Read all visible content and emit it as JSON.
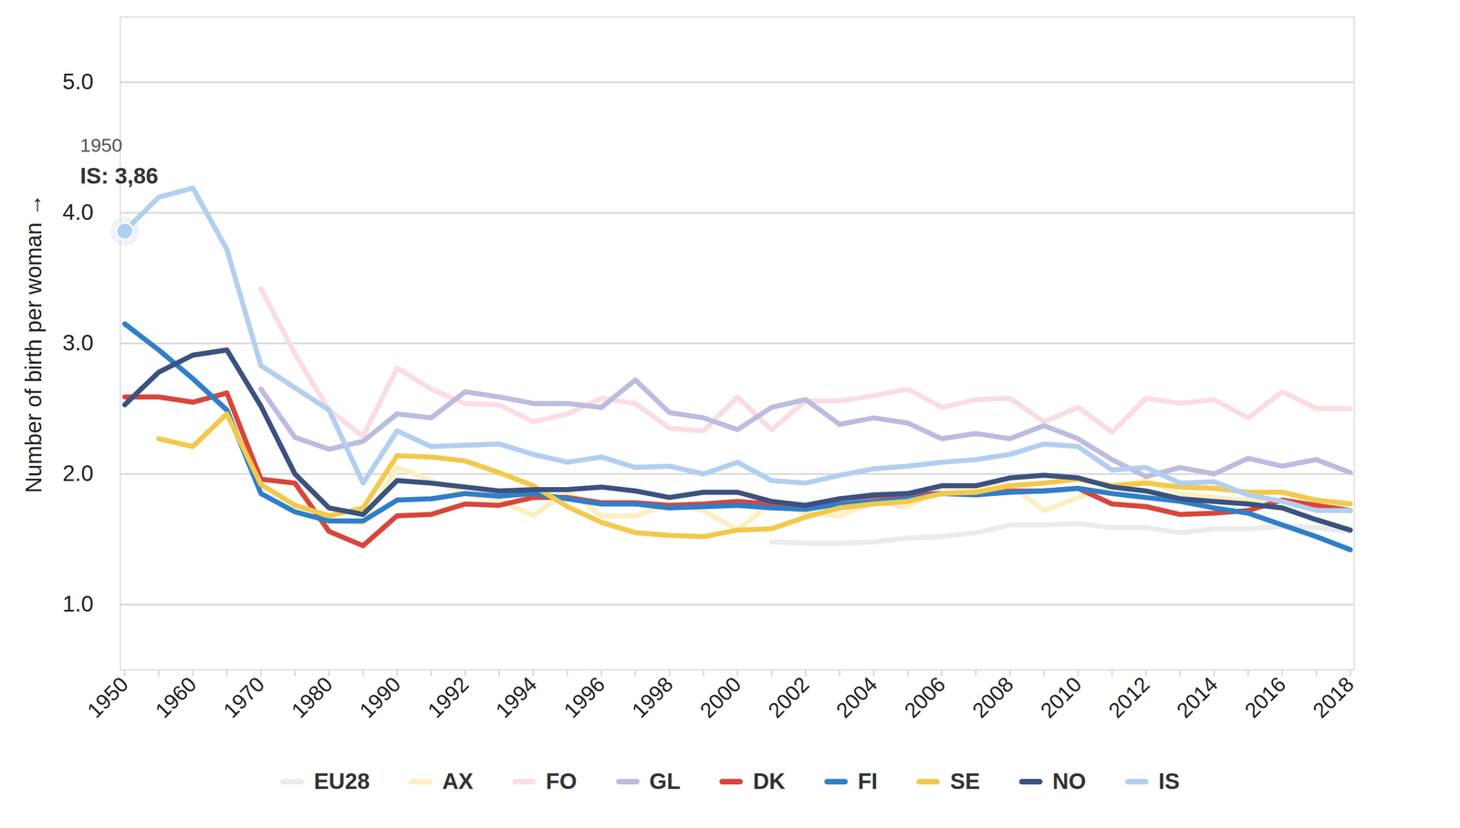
{
  "chart_data": {
    "type": "line",
    "y_label": "Number of birth per woman",
    "categories": [
      "1950",
      null,
      "1960",
      null,
      "1970",
      null,
      "1980",
      null,
      "1990",
      null,
      "1992",
      null,
      "1994",
      null,
      "1996",
      null,
      "1998",
      null,
      "2000",
      null,
      "2002",
      null,
      "2004",
      null,
      "2006",
      null,
      "2008",
      null,
      "2010",
      null,
      "2012",
      null,
      "2014",
      null,
      "2016",
      null,
      "2018"
    ],
    "ylim": [
      0.5,
      5.5
    ],
    "yticks": [
      1,
      2,
      3,
      4,
      5
    ],
    "grid": true,
    "legend": "bottom",
    "series": [
      {
        "name": "EU28",
        "color": "#ebebeb",
        "values": [
          null,
          null,
          null,
          null,
          null,
          null,
          null,
          null,
          null,
          null,
          null,
          null,
          null,
          null,
          null,
          null,
          null,
          null,
          null,
          1.48,
          1.47,
          1.47,
          1.48,
          1.51,
          1.52,
          1.55,
          1.61,
          1.61,
          1.62,
          1.59,
          1.59,
          1.55,
          1.58,
          1.58,
          1.6,
          1.59,
          1.56
        ]
      },
      {
        "name": "AX",
        "color": "#fcefc2",
        "values": [
          null,
          null,
          null,
          null,
          null,
          null,
          1.65,
          1.62,
          2.05,
          1.95,
          1.85,
          1.8,
          1.68,
          1.87,
          1.68,
          1.68,
          1.77,
          1.72,
          1.57,
          1.78,
          1.7,
          1.68,
          1.78,
          1.75,
          1.9,
          1.88,
          1.92,
          1.72,
          1.82,
          1.9,
          1.95,
          1.85,
          1.82,
          1.8,
          1.8,
          1.72,
          1.78
        ]
      },
      {
        "name": "FO",
        "color": "#fadde1",
        "values": [
          null,
          null,
          null,
          null,
          3.42,
          2.92,
          2.49,
          2.29,
          2.81,
          2.65,
          2.54,
          2.53,
          2.4,
          2.46,
          2.58,
          2.54,
          2.35,
          2.33,
          2.59,
          2.34,
          2.56,
          2.56,
          2.6,
          2.65,
          2.51,
          2.57,
          2.58,
          2.4,
          2.51,
          2.32,
          2.58,
          2.54,
          2.57,
          2.43,
          2.63,
          2.5,
          2.5
        ]
      },
      {
        "name": "GL",
        "color": "#bcbce0",
        "values": [
          null,
          null,
          null,
          null,
          2.65,
          2.28,
          2.19,
          2.25,
          2.46,
          2.43,
          2.63,
          2.59,
          2.54,
          2.54,
          2.51,
          2.72,
          2.47,
          2.43,
          2.34,
          2.51,
          2.57,
          2.38,
          2.43,
          2.39,
          2.27,
          2.31,
          2.27,
          2.37,
          2.27,
          2.11,
          1.98,
          2.05,
          2.0,
          2.12,
          2.06,
          2.11,
          2.01
        ]
      },
      {
        "name": "DK",
        "color": "#d9463b",
        "values": [
          2.59,
          2.59,
          2.55,
          2.62,
          1.96,
          1.93,
          1.56,
          1.45,
          1.68,
          1.69,
          1.77,
          1.76,
          1.82,
          1.82,
          1.78,
          1.78,
          1.76,
          1.77,
          1.79,
          1.77,
          1.76,
          1.81,
          1.83,
          1.84,
          1.85,
          1.85,
          1.87,
          1.87,
          1.89,
          1.77,
          1.75,
          1.69,
          1.7,
          1.72,
          1.8,
          1.76,
          1.72
        ]
      },
      {
        "name": "FI",
        "color": "#2f7fc8",
        "values": [
          3.15,
          2.95,
          2.73,
          2.49,
          1.85,
          1.71,
          1.64,
          1.64,
          1.8,
          1.81,
          1.85,
          1.83,
          1.85,
          1.81,
          1.77,
          1.77,
          1.74,
          1.75,
          1.76,
          1.74,
          1.73,
          1.77,
          1.79,
          1.81,
          1.85,
          1.84,
          1.86,
          1.87,
          1.89,
          1.85,
          1.82,
          1.79,
          1.74,
          1.7,
          1.61,
          1.52,
          1.42
        ]
      },
      {
        "name": "SE",
        "color": "#f2c94c",
        "values": [
          null,
          2.27,
          2.21,
          2.46,
          1.92,
          1.76,
          1.68,
          1.74,
          2.14,
          2.13,
          2.1,
          2.01,
          1.91,
          1.75,
          1.63,
          1.55,
          1.53,
          1.52,
          1.57,
          1.58,
          1.67,
          1.74,
          1.77,
          1.79,
          1.85,
          1.86,
          1.91,
          1.93,
          1.96,
          1.91,
          1.93,
          1.9,
          1.89,
          1.86,
          1.86,
          1.8,
          1.77
        ]
      },
      {
        "name": "NO",
        "color": "#3b5280",
        "values": [
          2.53,
          2.78,
          2.91,
          2.95,
          2.52,
          2.0,
          1.74,
          1.69,
          1.95,
          1.93,
          1.9,
          1.87,
          1.88,
          1.88,
          1.9,
          1.87,
          1.82,
          1.86,
          1.86,
          1.79,
          1.76,
          1.81,
          1.84,
          1.85,
          1.91,
          1.91,
          1.97,
          1.99,
          1.97,
          1.9,
          1.87,
          1.81,
          1.79,
          1.77,
          1.74,
          1.65,
          1.57
        ]
      },
      {
        "name": "IS",
        "color": "#b2cff0",
        "values": [
          3.86,
          4.12,
          4.19,
          3.72,
          2.83,
          2.66,
          2.49,
          1.93,
          2.33,
          2.21,
          2.22,
          2.23,
          2.15,
          2.09,
          2.13,
          2.05,
          2.06,
          2.0,
          2.09,
          1.95,
          1.93,
          1.99,
          2.04,
          2.06,
          2.09,
          2.11,
          2.15,
          2.23,
          2.21,
          2.03,
          2.05,
          1.93,
          1.94,
          1.84,
          1.79,
          1.72,
          1.72
        ]
      }
    ],
    "annotation": {
      "lines": [
        "1950",
        "IS: 3,86"
      ],
      "series": "IS",
      "category": "1950"
    }
  }
}
